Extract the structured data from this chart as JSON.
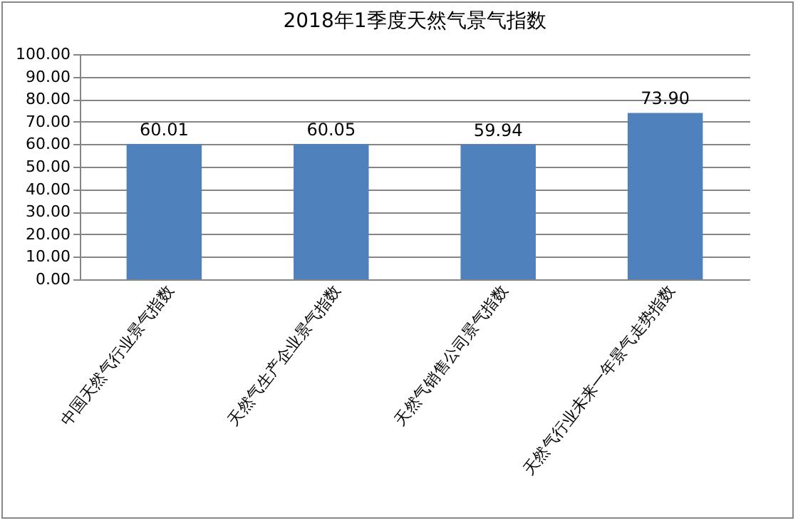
{
  "chart_data": {
    "type": "bar",
    "title": "2018年1季度天然气景气指数",
    "categories": [
      "中国天然气行业景气指数",
      "天然气生产企业景气指数",
      "天然气销售公司景气指数",
      "天然气行业未来一年景气走势指数"
    ],
    "values": [
      60.01,
      60.05,
      59.94,
      73.9
    ],
    "value_labels": [
      "60.01",
      "60.05",
      "59.94",
      "73.90"
    ],
    "color": "#4f81bd",
    "ylim": [
      0,
      100
    ],
    "yticks": [
      {
        "value": 0,
        "label": "0.00"
      },
      {
        "value": 10,
        "label": "10.00"
      },
      {
        "value": 20,
        "label": "20.00"
      },
      {
        "value": 30,
        "label": "30.00"
      },
      {
        "value": 40,
        "label": "40.00"
      },
      {
        "value": 50,
        "label": "50.00"
      },
      {
        "value": 60,
        "label": "60.00"
      },
      {
        "value": 70,
        "label": "70.00"
      },
      {
        "value": 80,
        "label": "80.00"
      },
      {
        "value": 90,
        "label": "90.00"
      },
      {
        "value": 100,
        "label": "100.00"
      }
    ],
    "grid": true
  }
}
